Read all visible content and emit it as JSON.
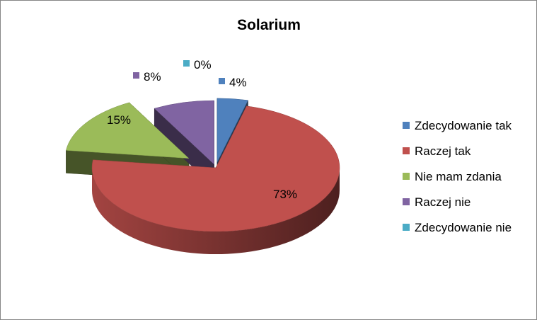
{
  "chart_data": {
    "type": "pie",
    "title": "Solarium",
    "categories": [
      "Zdecydowanie tak",
      "Raczej tak",
      "Nie mam zdania",
      "Raczej nie",
      "Zdecydowanie nie"
    ],
    "values": [
      4,
      73,
      15,
      8,
      0
    ],
    "data_labels": [
      "4%",
      "73%",
      "15%",
      "8%",
      "0%"
    ],
    "colors": [
      "#4f81bd",
      "#c0504d",
      "#9bbb59",
      "#8064a2",
      "#4bacc6"
    ],
    "style": "3d-exploded",
    "legend_position": "right"
  }
}
